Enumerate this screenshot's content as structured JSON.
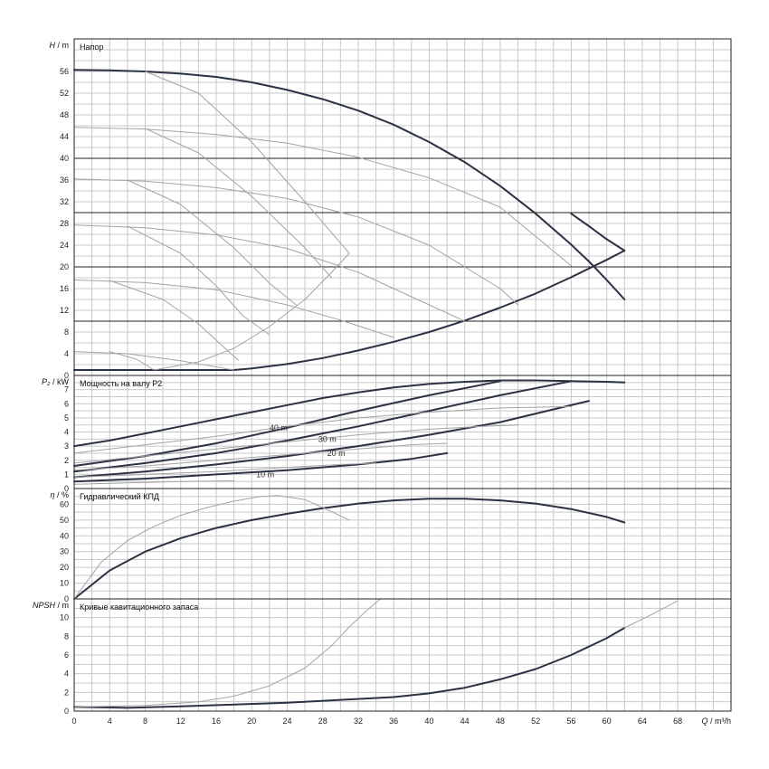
{
  "chart_data": [
    {
      "type": "line",
      "panel": "head",
      "title": "Напор",
      "ylabel_var": "H",
      "ylabel_unit": "m",
      "xlim": [
        0,
        74
      ],
      "ylim": [
        0,
        62
      ],
      "yticks": [
        0,
        4,
        8,
        12,
        16,
        20,
        24,
        28,
        32,
        36,
        40,
        44,
        48,
        52,
        56
      ],
      "minor_step": 2,
      "grid": true,
      "reference_lines": [
        10,
        20,
        30,
        40
      ],
      "series": [
        {
          "style": "main",
          "x": [
            0,
            4,
            8,
            12,
            16,
            20,
            24,
            28,
            32,
            36,
            40,
            44,
            48,
            52,
            56,
            58,
            60,
            62
          ],
          "y": [
            56.3,
            56.2,
            56.0,
            55.6,
            55.0,
            54.0,
            52.6,
            50.9,
            48.8,
            46.2,
            43.0,
            39.3,
            34.9,
            29.8,
            24.1,
            21.0,
            17.6,
            14.0
          ]
        },
        {
          "style": "main",
          "x": [
            0,
            10,
            18,
            20,
            24,
            28,
            32,
            36,
            40,
            44,
            48,
            52,
            56,
            60,
            62
          ],
          "y": [
            1.0,
            1.0,
            1.0,
            1.3,
            2.1,
            3.2,
            4.6,
            6.2,
            8.0,
            10.1,
            12.5,
            15.1,
            18.1,
            21.3,
            23.0
          ]
        },
        {
          "style": "main",
          "x": [
            56,
            58,
            60,
            62
          ],
          "y": [
            29.8,
            27.5,
            25.1,
            23.0
          ]
        },
        {
          "style": "thin",
          "x": [
            0,
            8,
            16,
            24,
            32,
            40,
            48,
            56
          ],
          "y": [
            45.7,
            45.4,
            44.4,
            42.8,
            40.2,
            36.4,
            31.0,
            20.2
          ]
        },
        {
          "style": "thin",
          "x": [
            0,
            8,
            16,
            24,
            32,
            40,
            48,
            50
          ],
          "y": [
            36.2,
            35.8,
            34.6,
            32.6,
            29.2,
            24.0,
            16.0,
            13.0
          ]
        },
        {
          "style": "thin",
          "x": [
            0,
            8,
            16,
            24,
            32,
            38,
            44
          ],
          "y": [
            27.7,
            27.2,
            25.9,
            23.4,
            19.0,
            14.5,
            10.0
          ]
        },
        {
          "style": "thin",
          "x": [
            0,
            8,
            16,
            24,
            30,
            36
          ],
          "y": [
            17.6,
            17.1,
            15.8,
            13.0,
            10.2,
            7.0
          ]
        },
        {
          "style": "thin",
          "x": [
            0,
            6,
            12,
            18
          ],
          "y": [
            4.4,
            4.0,
            2.7,
            1.0
          ]
        },
        {
          "style": "thin",
          "x": [
            8,
            14,
            20,
            26,
            31
          ],
          "y": [
            56.0,
            52.0,
            43.0,
            32.0,
            22.5
          ]
        },
        {
          "style": "thin",
          "x": [
            8,
            14,
            20,
            26,
            29
          ],
          "y": [
            45.5,
            41.0,
            33.0,
            23.5,
            18.0
          ]
        },
        {
          "style": "thin",
          "x": [
            6,
            12,
            18,
            22,
            25
          ],
          "y": [
            36.0,
            31.5,
            23.5,
            17.0,
            13.0
          ]
        },
        {
          "style": "thin",
          "x": [
            6,
            12,
            16,
            19,
            22
          ],
          "y": [
            27.5,
            22.5,
            16.5,
            11.0,
            7.5
          ]
        },
        {
          "style": "thin",
          "x": [
            4,
            10,
            14,
            17,
            18.5
          ],
          "y": [
            17.5,
            14.0,
            9.5,
            5.0,
            2.8
          ]
        },
        {
          "style": "thin",
          "x": [
            4,
            7,
            9
          ],
          "y": [
            4.4,
            3.0,
            1.0
          ]
        },
        {
          "style": "thin",
          "x": [
            9,
            14,
            18,
            22,
            26,
            29,
            31
          ],
          "y": [
            1.0,
            2.5,
            5.0,
            9.0,
            14.0,
            19.0,
            22.5
          ]
        }
      ]
    },
    {
      "type": "line",
      "panel": "power",
      "title": "Мощность на валу P2",
      "ylabel_var": "P₂",
      "ylabel_unit": "kW",
      "xlim": [
        0,
        74
      ],
      "ylim": [
        0,
        8
      ],
      "yticks": [
        0,
        1,
        2,
        3,
        4,
        5,
        6,
        7
      ],
      "minor_step": 0.5,
      "grid": true,
      "reference_lines": [],
      "curve_labels": [
        {
          "text": "40 m",
          "x": 22.0,
          "y": 4.3
        },
        {
          "text": "30 m",
          "x": 27.5,
          "y": 3.5
        },
        {
          "text": "20 m",
          "x": 28.5,
          "y": 2.5
        },
        {
          "text": "10 m",
          "x": 20.5,
          "y": 1.0
        }
      ],
      "series": [
        {
          "style": "main",
          "x": [
            0,
            4,
            8,
            12,
            16,
            20,
            24,
            28,
            32,
            36,
            40,
            44,
            48,
            52,
            56,
            60,
            62
          ],
          "y": [
            3.0,
            3.4,
            3.9,
            4.4,
            4.9,
            5.4,
            5.9,
            6.4,
            6.8,
            7.15,
            7.4,
            7.55,
            7.65,
            7.65,
            7.6,
            7.55,
            7.5
          ]
        },
        {
          "style": "main",
          "x": [
            0,
            8,
            16,
            24,
            32,
            40,
            48
          ],
          "y": [
            1.6,
            2.3,
            3.2,
            4.3,
            5.5,
            6.6,
            7.6
          ]
        },
        {
          "style": "main",
          "x": [
            0,
            8,
            16,
            24,
            32,
            40,
            48,
            56
          ],
          "y": [
            1.2,
            1.8,
            2.5,
            3.4,
            4.4,
            5.5,
            6.6,
            7.6
          ]
        },
        {
          "style": "main",
          "x": [
            0,
            8,
            16,
            24,
            32,
            40,
            48,
            58
          ],
          "y": [
            0.8,
            1.2,
            1.7,
            2.3,
            3.0,
            3.8,
            4.7,
            6.2
          ]
        },
        {
          "style": "main",
          "x": [
            0,
            8,
            16,
            24,
            32,
            38,
            42
          ],
          "y": [
            0.5,
            0.7,
            1.0,
            1.3,
            1.7,
            2.1,
            2.5
          ]
        },
        {
          "style": "thin",
          "x": [
            0,
            8,
            16,
            24,
            32,
            40,
            48,
            56
          ],
          "y": [
            2.5,
            3.1,
            3.7,
            4.4,
            5.0,
            5.4,
            5.7,
            5.8
          ]
        },
        {
          "style": "thin",
          "x": [
            0,
            8,
            16,
            24,
            32,
            40,
            46,
            50
          ],
          "y": [
            1.8,
            2.3,
            2.8,
            3.3,
            3.8,
            4.2,
            4.4,
            4.5
          ]
        },
        {
          "style": "thin",
          "x": [
            0,
            8,
            16,
            24,
            32,
            38,
            42
          ],
          "y": [
            1.3,
            1.6,
            2.0,
            2.4,
            2.8,
            3.1,
            3.2
          ]
        },
        {
          "style": "thin",
          "x": [
            0,
            8,
            16,
            24,
            30,
            34
          ],
          "y": [
            0.8,
            1.0,
            1.2,
            1.5,
            1.7,
            1.8
          ]
        },
        {
          "style": "thin",
          "x": [
            0,
            6,
            12,
            18
          ],
          "y": [
            0.3,
            0.4,
            0.5,
            0.55
          ]
        }
      ]
    },
    {
      "type": "line",
      "panel": "efficiency",
      "title": "Гидравлический КПД",
      "ylabel_var": "η",
      "ylabel_unit": "%",
      "xlim": [
        0,
        74
      ],
      "ylim": [
        0,
        70
      ],
      "yticks": [
        0,
        10,
        20,
        30,
        40,
        50,
        60
      ],
      "minor_step": 5,
      "grid": true,
      "reference_lines": [],
      "series": [
        {
          "style": "main",
          "x": [
            0,
            4,
            8,
            12,
            16,
            20,
            24,
            28,
            32,
            36,
            40,
            44,
            48,
            52,
            56,
            60,
            62
          ],
          "y": [
            0,
            18,
            30,
            38.5,
            45,
            50,
            54,
            57.5,
            60.5,
            62.5,
            63.5,
            63.5,
            62.5,
            60.5,
            57,
            52,
            48.5
          ]
        },
        {
          "style": "thin",
          "x": [
            0,
            3,
            6,
            9,
            12,
            15,
            18,
            21,
            23,
            26,
            28,
            31
          ],
          "y": [
            0,
            23,
            37,
            46,
            53,
            58,
            62,
            65,
            65.5,
            63,
            58,
            50
          ]
        }
      ]
    },
    {
      "type": "line",
      "panel": "npsh",
      "title": "Кривые кавитационного запаса",
      "ylabel_var": "NPSH",
      "ylabel_unit": "m",
      "xlabel_var": "Q",
      "xlabel_unit": "m³/h",
      "xlim": [
        0,
        74
      ],
      "ylim": [
        0,
        12
      ],
      "yticks": [
        0,
        2,
        4,
        6,
        8,
        10
      ],
      "xticks": [
        0,
        4,
        8,
        12,
        16,
        20,
        24,
        28,
        32,
        36,
        40,
        44,
        48,
        52,
        56,
        60,
        64,
        68
      ],
      "minor_step": 1,
      "grid": true,
      "reference_lines": [],
      "series": [
        {
          "style": "main",
          "x": [
            0,
            6,
            12,
            18,
            24,
            30,
            36,
            40,
            44,
            48,
            52,
            56,
            60,
            62
          ],
          "y": [
            0.45,
            0.35,
            0.5,
            0.7,
            0.9,
            1.2,
            1.5,
            1.9,
            2.5,
            3.4,
            4.5,
            6.0,
            7.8,
            8.9
          ]
        },
        {
          "style": "thin",
          "x": [
            62,
            65,
            68
          ],
          "y": [
            8.9,
            10.3,
            11.8
          ]
        },
        {
          "style": "thin",
          "x": [
            0,
            8,
            14,
            18,
            22,
            26,
            29,
            31,
            33,
            34.5
          ],
          "y": [
            0.45,
            0.6,
            1.0,
            1.6,
            2.7,
            4.6,
            7.0,
            9.0,
            10.8,
            12.0
          ]
        }
      ]
    }
  ]
}
